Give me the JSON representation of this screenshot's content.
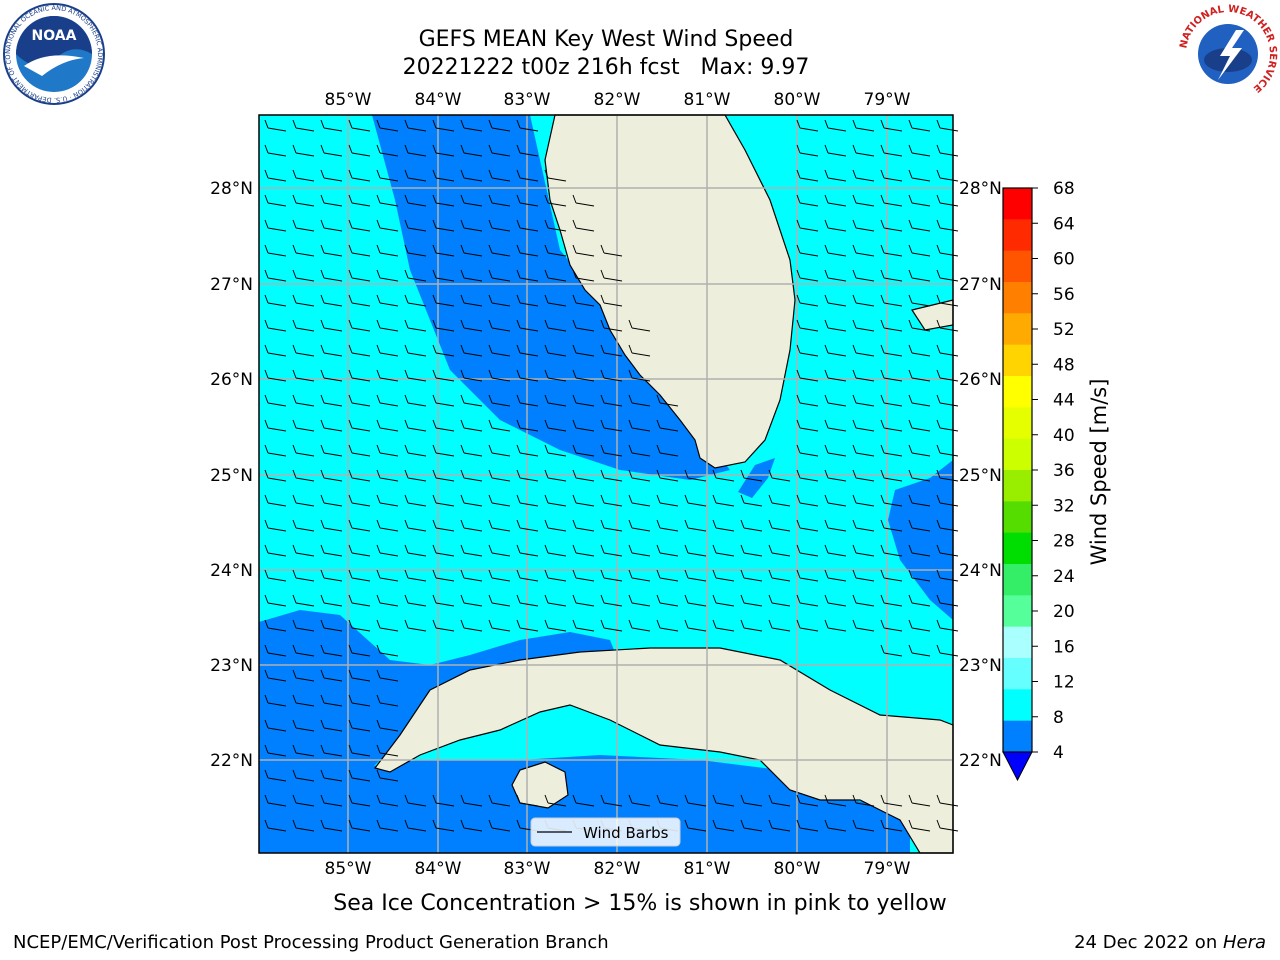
{
  "title": {
    "line1": "GEFS MEAN Key West Wind Speed",
    "line2": "20221222 t00z 216h fcst   Max: 9.97"
  },
  "axes": {
    "lon_labels": [
      "85°W",
      "84°W",
      "83°W",
      "82°W",
      "81°W",
      "80°W",
      "79°W"
    ],
    "lat_labels": [
      "28°N",
      "27°N",
      "26°N",
      "25°N",
      "24°N",
      "23°N",
      "22°N"
    ]
  },
  "legend": {
    "label": "Wind Barbs"
  },
  "colorbar": {
    "label": "Wind Speed [m/s]",
    "ticks": [
      "68",
      "64",
      "60",
      "56",
      "52",
      "48",
      "44",
      "40",
      "36",
      "32",
      "28",
      "24",
      "20",
      "16",
      "12",
      "8",
      "4"
    ],
    "colors": [
      "#ff0000",
      "#ff2a00",
      "#ff5500",
      "#ff7f00",
      "#ffaa00",
      "#ffd400",
      "#ffff00",
      "#e6ff00",
      "#ccff00",
      "#99ee00",
      "#55dd00",
      "#00dd00",
      "#33ee66",
      "#55ff99",
      "#aaffff",
      "#66ffff",
      "#00ffff",
      "#0080ff"
    ],
    "underflow_color": "#0000ff"
  },
  "map_colors": {
    "light_wind": "#00ffff",
    "moderate_wind": "#0080ff",
    "land": "#eeeedc",
    "grid": "#b0b0b0"
  },
  "caption": "Sea Ice Concentration > 15% is shown in pink to yellow",
  "footer": {
    "left": "NCEP/EMC/Verification Post Processing Product Generation Branch",
    "right_date": "24 Dec 2022 on ",
    "right_host": "Hera"
  },
  "logos": {
    "noaa": {
      "text": "NOAA",
      "ring_text": "NATIONAL OCEANIC AND ATMOSPHERIC ADMINISTRATION · U.S. DEPARTMENT OF COMMERCE"
    },
    "nws": {
      "ring_text": "NATIONAL WEATHER SERVICE"
    }
  }
}
